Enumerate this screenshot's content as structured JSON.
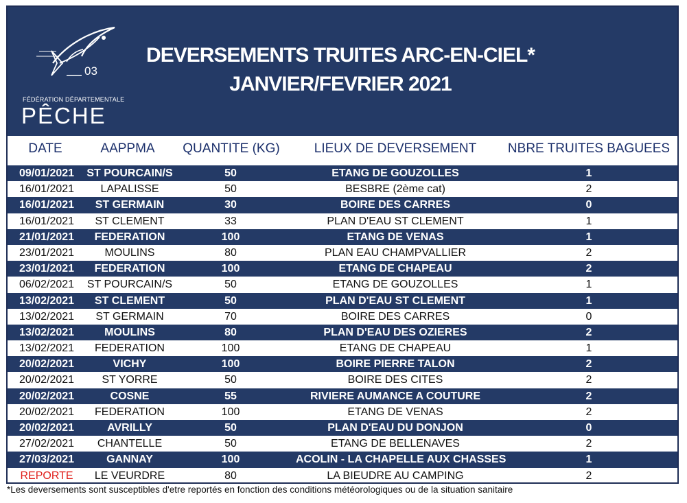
{
  "header": {
    "title_line1": "DEVERSEMENTS TRUITES ARC-EN-CIEL*",
    "title_line2": "JANVIER/FEVRIER 2021",
    "logo": {
      "number": "03",
      "subtitle": "FÉDÉRATION DÉPARTEMENTALE",
      "name": "PÊCHE"
    },
    "colors": {
      "navy": "#243a66",
      "header_text": "#1b2f6b",
      "reported": "#e0201c"
    }
  },
  "columns": [
    "DATE",
    "AAPPMA",
    "QUANTITE  (KG)",
    "LIEUX DE DEVERSEMENT",
    "NBRE TRUITES BAGUEES"
  ],
  "rows": [
    {
      "date": "09/01/2021",
      "aappma": "ST POURCAIN/S",
      "qty": "50",
      "lieu": "ETANG DE GOUZOLLES",
      "nbre": "1"
    },
    {
      "date": "16/01/2021",
      "aappma": "LAPALISSE",
      "qty": "50",
      "lieu": "BESBRE (2ème cat)",
      "nbre": "2"
    },
    {
      "date": "16/01/2021",
      "aappma": "ST GERMAIN",
      "qty": "30",
      "lieu": "BOIRE DES CARRES",
      "nbre": "0"
    },
    {
      "date": "16/01/2021",
      "aappma": "ST CLEMENT",
      "qty": "33",
      "lieu": "PLAN D'EAU ST CLEMENT",
      "nbre": "1"
    },
    {
      "date": "21/01/2021",
      "aappma": "FEDERATION",
      "qty": "100",
      "lieu": "ETANG DE VENAS",
      "nbre": "1"
    },
    {
      "date": "23/01/2021",
      "aappma": "MOULINS",
      "qty": "80",
      "lieu": "PLAN EAU CHAMPVALLIER",
      "nbre": "2"
    },
    {
      "date": "23/01/2021",
      "aappma": "FEDERATION",
      "qty": "100",
      "lieu": "ETANG DE CHAPEAU",
      "nbre": "2"
    },
    {
      "date": "06/02/2021",
      "aappma": "ST POURCAIN/S",
      "qty": "50",
      "lieu": "ETANG DE GOUZOLLES",
      "nbre": "1"
    },
    {
      "date": "13/02/2021",
      "aappma": "ST CLEMENT",
      "qty": "50",
      "lieu": "PLAN D'EAU ST CLEMENT",
      "nbre": "1"
    },
    {
      "date": "13/02/2021",
      "aappma": "ST GERMAIN",
      "qty": "70",
      "lieu": "BOIRE DES CARRES",
      "nbre": "0"
    },
    {
      "date": "13/02/2021",
      "aappma": "MOULINS",
      "qty": "80",
      "lieu": "PLAN D'EAU DES OZIERES",
      "nbre": "2"
    },
    {
      "date": "13/02/2021",
      "aappma": "FEDERATION",
      "qty": "100",
      "lieu": "ETANG DE CHAPEAU",
      "nbre": "1"
    },
    {
      "date": "20/02/2021",
      "aappma": "VICHY",
      "qty": "100",
      "lieu": "BOIRE PIERRE TALON",
      "nbre": "2"
    },
    {
      "date": "20/02/2021",
      "aappma": "ST YORRE",
      "qty": "50",
      "lieu": "BOIRE DES CITES",
      "nbre": "2"
    },
    {
      "date": "20/02/2021",
      "aappma": "COSNE",
      "qty": "55",
      "lieu": "RIVIERE AUMANCE A COUTURE",
      "nbre": "2"
    },
    {
      "date": "20/02/2021",
      "aappma": "FEDERATION",
      "qty": "100",
      "lieu": "ETANG DE VENAS",
      "nbre": "2"
    },
    {
      "date": "20/02/2021",
      "aappma": "AVRILLY",
      "qty": "50",
      "lieu": "PLAN D'EAU DU DONJON",
      "nbre": "0"
    },
    {
      "date": "27/02/2021",
      "aappma": "CHANTELLE",
      "qty": "50",
      "lieu": "ETANG DE BELLENAVES",
      "nbre": "2"
    },
    {
      "date": "27/03/2021",
      "aappma": "GANNAY",
      "qty": "100",
      "lieu": "ACOLIN - LA CHAPELLE AUX CHASSES",
      "nbre": "1"
    },
    {
      "date": "REPORTE",
      "aappma": "LE VEURDRE",
      "qty": "80",
      "lieu": "LA BIEUDRE AU CAMPING",
      "nbre": "2",
      "reported": true
    }
  ],
  "footnote": "*Les deversements sont susceptibles d'etre reportés en fonction des conditions météorologiques ou de la situation sanitaire"
}
